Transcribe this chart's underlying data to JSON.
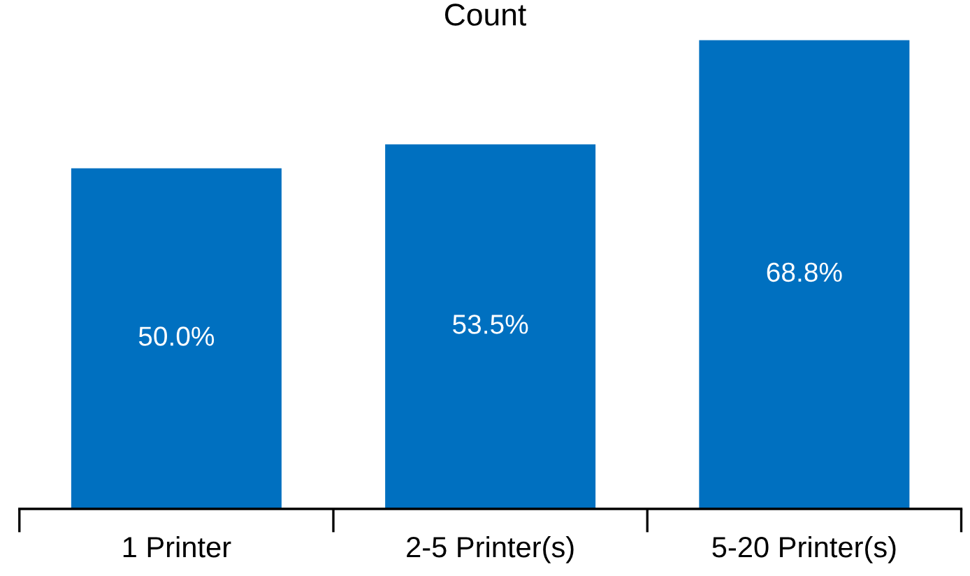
{
  "chart_data": {
    "type": "bar",
    "title": "Count",
    "categories": [
      "1 Printer",
      "2-5 Printer(s)",
      "5-20 Printer(s)"
    ],
    "values": [
      50.0,
      53.5,
      68.8
    ],
    "value_labels": [
      "50.0%",
      "53.5%",
      "68.8%"
    ],
    "color": "#0070c0",
    "tick_labels": "x",
    "grid": false
  }
}
